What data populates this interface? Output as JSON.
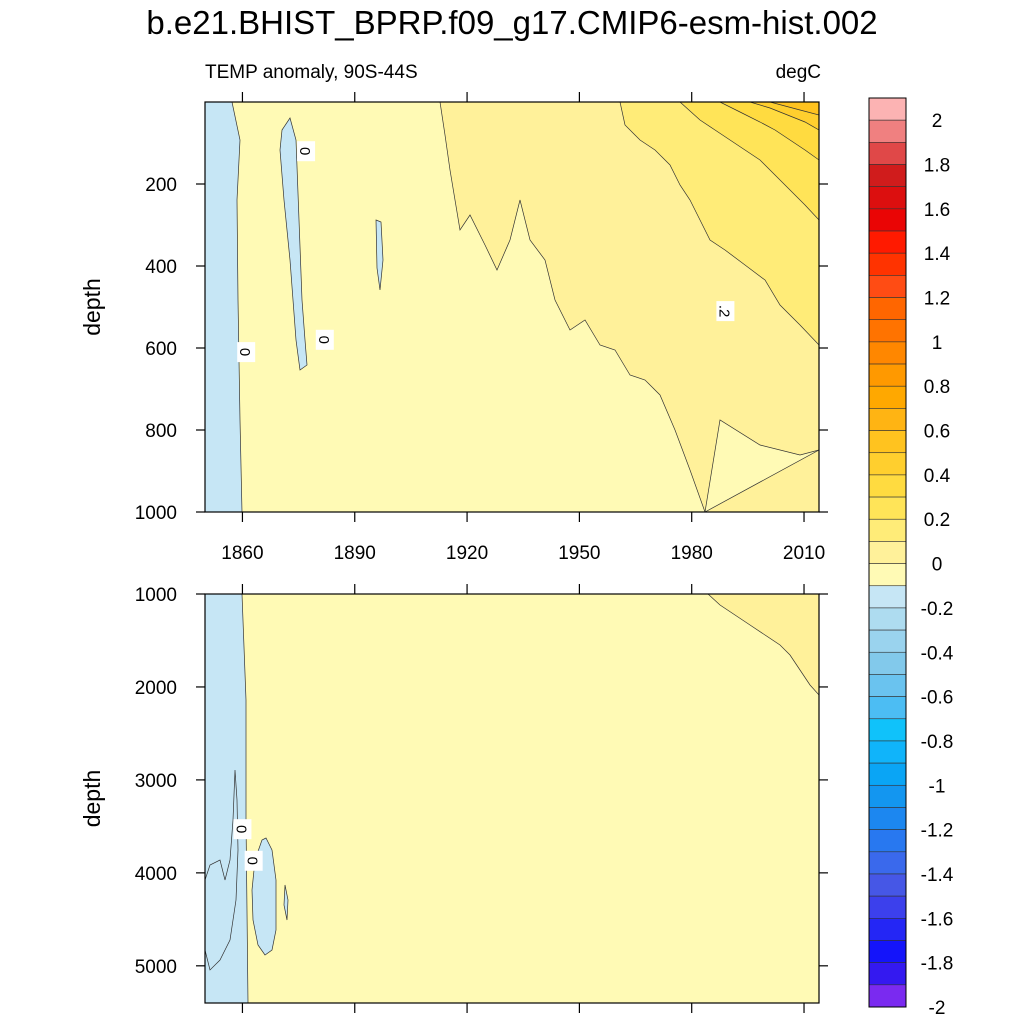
{
  "figure": {
    "title": "b.e21.BHIST_BPRP.f09_g17.CMIP6-esm-hist.002",
    "left_subtitle": "TEMP anomaly, 90S-44S",
    "right_subtitle": "degC"
  },
  "chart_data": {
    "type": "heatmap",
    "title": "b.e21.BHIST_BPRP.f09_g17.CMIP6-esm-hist.002",
    "variable": "TEMP anomaly, 90S-44S",
    "units": "degC",
    "x_range": [
      1850,
      2014
    ],
    "x_ticks": [
      1860,
      1890,
      1920,
      1950,
      1980,
      2010
    ],
    "panels": [
      {
        "name": "upper",
        "ylabel": "depth",
        "ylim": [
          0,
          1000
        ],
        "y_ticks": [
          200,
          400,
          600,
          800,
          1000
        ],
        "contour_labels": [
          {
            "text": "0",
            "year": 1877,
            "depth": 120
          },
          {
            "text": "0",
            "year": 1861,
            "depth": 610
          },
          {
            "text": "0",
            "year": 1882,
            "depth": 580
          },
          {
            "text": ".2",
            "year": 1989,
            "depth": 510
          }
        ]
      },
      {
        "name": "lower",
        "ylabel": "depth",
        "ylim": [
          1000,
          5400
        ],
        "y_ticks": [
          1000,
          2000,
          3000,
          4000,
          5000
        ],
        "contour_labels": [
          {
            "text": "0",
            "year": 1860,
            "depth": 3530
          },
          {
            "text": "0",
            "year": 1863,
            "depth": 3870
          }
        ]
      }
    ],
    "colorbar": {
      "levels": [
        -2,
        -1.8,
        -1.6,
        -1.4,
        -1.2,
        -1,
        -0.8,
        -0.6,
        -0.4,
        -0.2,
        0,
        0.2,
        0.4,
        0.6,
        0.8,
        1,
        1.2,
        1.4,
        1.6,
        1.8,
        2
      ],
      "tick_labels": [
        "2",
        "1.8",
        "1.6",
        "1.4",
        "1.2",
        "1",
        "0.8",
        "0.6",
        "0.4",
        "0.2",
        "0",
        "-0.2",
        "-0.4",
        "-0.6",
        "-0.8",
        "-1",
        "-1.2",
        "-1.4",
        "-1.6",
        "-1.8",
        "-2"
      ],
      "colors_top_to_bottom": [
        "#fcb3b3",
        "#f08080",
        "#e04848",
        "#d01c1c",
        "#dc0f0f",
        "#ea0505",
        "#ff1a00",
        "#ff3300",
        "#ff4c14",
        "#ff6600",
        "#ff7300",
        "#ff8700",
        "#ff9900",
        "#ffa800",
        "#ffb413",
        "#ffc31f",
        "#ffcf2e",
        "#ffdb40",
        "#ffe458",
        "#ffec78",
        "#fff19a",
        "#fffab5",
        "#c6e6f5",
        "#aedcf0",
        "#9ad3ee",
        "#82c9eb",
        "#6ac3ef",
        "#4cbdf3",
        "#10c2fa",
        "#10b4fa",
        "#0aa5f5",
        "#1396f0",
        "#1c87f0",
        "#2878f0",
        "#3a69ec",
        "#4657e6",
        "#3c40ec",
        "#2426f5",
        "#1414fa",
        "#3419f0",
        "#7a2af0"
      ]
    }
  }
}
